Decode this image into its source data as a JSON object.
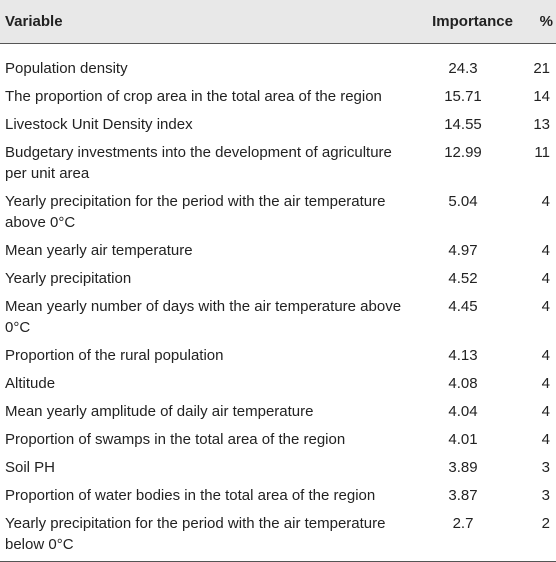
{
  "table": {
    "headers": {
      "variable": "Variable",
      "importance": "Importance",
      "percent": "%"
    },
    "rows": [
      {
        "variable": "Population density",
        "importance": "24.3",
        "percent": "21"
      },
      {
        "variable": "The proportion of crop area in the total area of the region",
        "importance": "15.71",
        "percent": "14"
      },
      {
        "variable": "Livestock Unit Density index",
        "importance": "14.55",
        "percent": "13"
      },
      {
        "variable": "Budgetary investments into the development of agriculture per unit area",
        "importance": "12.99",
        "percent": "11"
      },
      {
        "variable": "Yearly precipitation for the period with the air temperature above 0°C",
        "importance": "5.04",
        "percent": "4"
      },
      {
        "variable": "Mean yearly air temperature",
        "importance": "4.97",
        "percent": "4"
      },
      {
        "variable": "Yearly precipitation",
        "importance": "4.52",
        "percent": "4"
      },
      {
        "variable": "Mean yearly number of days with the air temperature above 0°C",
        "importance": "4.45",
        "percent": "4"
      },
      {
        "variable": "Proportion of the rural population",
        "importance": "4.13",
        "percent": "4"
      },
      {
        "variable": "Altitude",
        "importance": "4.08",
        "percent": "4"
      },
      {
        "variable": "Mean yearly amplitude of daily air temperature",
        "importance": "4.04",
        "percent": "4"
      },
      {
        "variable": "Proportion of swamps in the total area of the region",
        "importance": "4.01",
        "percent": "4"
      },
      {
        "variable": "Soil PH",
        "importance": "3.89",
        "percent": "3"
      },
      {
        "variable": "Proportion of water bodies in the total area of the region",
        "importance": "3.87",
        "percent": "3"
      },
      {
        "variable": "Yearly precipitation for the period with the air temperature below 0°C",
        "importance": "2.7",
        "percent": "2"
      }
    ]
  }
}
